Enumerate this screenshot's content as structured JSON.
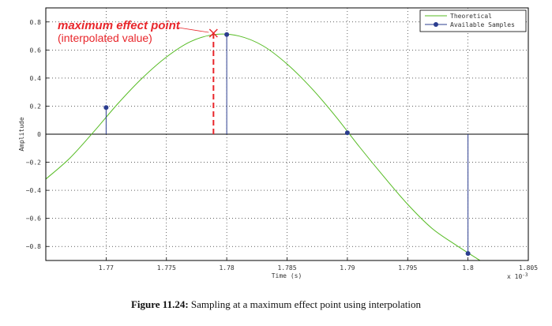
{
  "chart_data": {
    "type": "line",
    "xlabel": "Time (s)",
    "ylabel": "Amplitude",
    "x_exponent_label": "x 10",
    "x_exponent_power": "-3",
    "xlim": [
      1.765,
      1.805
    ],
    "ylim": [
      -0.9,
      0.9
    ],
    "x_ticks": [
      1.77,
      1.775,
      1.78,
      1.785,
      1.79,
      1.795,
      1.8,
      1.805
    ],
    "x_tick_labels": [
      "1.77",
      "1.775",
      "1.78",
      "1.785",
      "1.79",
      "1.795",
      "1.8",
      "1.805"
    ],
    "y_ticks": [
      -0.8,
      -0.6,
      -0.4,
      -0.2,
      0,
      0.2,
      0.4,
      0.6,
      0.8
    ],
    "y_tick_labels": [
      "−0.8",
      "−0.6",
      "−0.4",
      "−0.2",
      "0",
      "0.2",
      "0.4",
      "0.6",
      "0.8"
    ],
    "grid": true,
    "legend_position": "top-right",
    "series": [
      {
        "name": "Theoretical",
        "style": "line",
        "color": "#55bb22",
        "x": [
          1.765,
          1.767,
          1.769,
          1.771,
          1.773,
          1.775,
          1.777,
          1.779,
          1.781,
          1.783,
          1.785,
          1.787,
          1.789,
          1.791,
          1.793,
          1.795,
          1.797,
          1.799,
          1.801
        ],
        "y": [
          -0.32,
          -0.17,
          0.02,
          0.22,
          0.4,
          0.55,
          0.66,
          0.71,
          0.7,
          0.63,
          0.5,
          0.33,
          0.13,
          -0.09,
          -0.3,
          -0.5,
          -0.67,
          -0.79,
          -0.9
        ]
      },
      {
        "name": "Available Samples",
        "style": "stem",
        "color": "#2b3d8f",
        "x": [
          1.77,
          1.78,
          1.79,
          1.8
        ],
        "y": [
          0.19,
          0.71,
          0.01,
          -0.85
        ]
      }
    ],
    "annotations": {
      "interp_x": 1.7789,
      "interp_y": 0.72,
      "title": "maximum effect point",
      "subtitle": "(interpolated value)",
      "color": "#e8262b"
    }
  },
  "caption": {
    "label": "Figure 11.24:",
    "text": " Sampling at a maximum effect point using interpolation"
  }
}
